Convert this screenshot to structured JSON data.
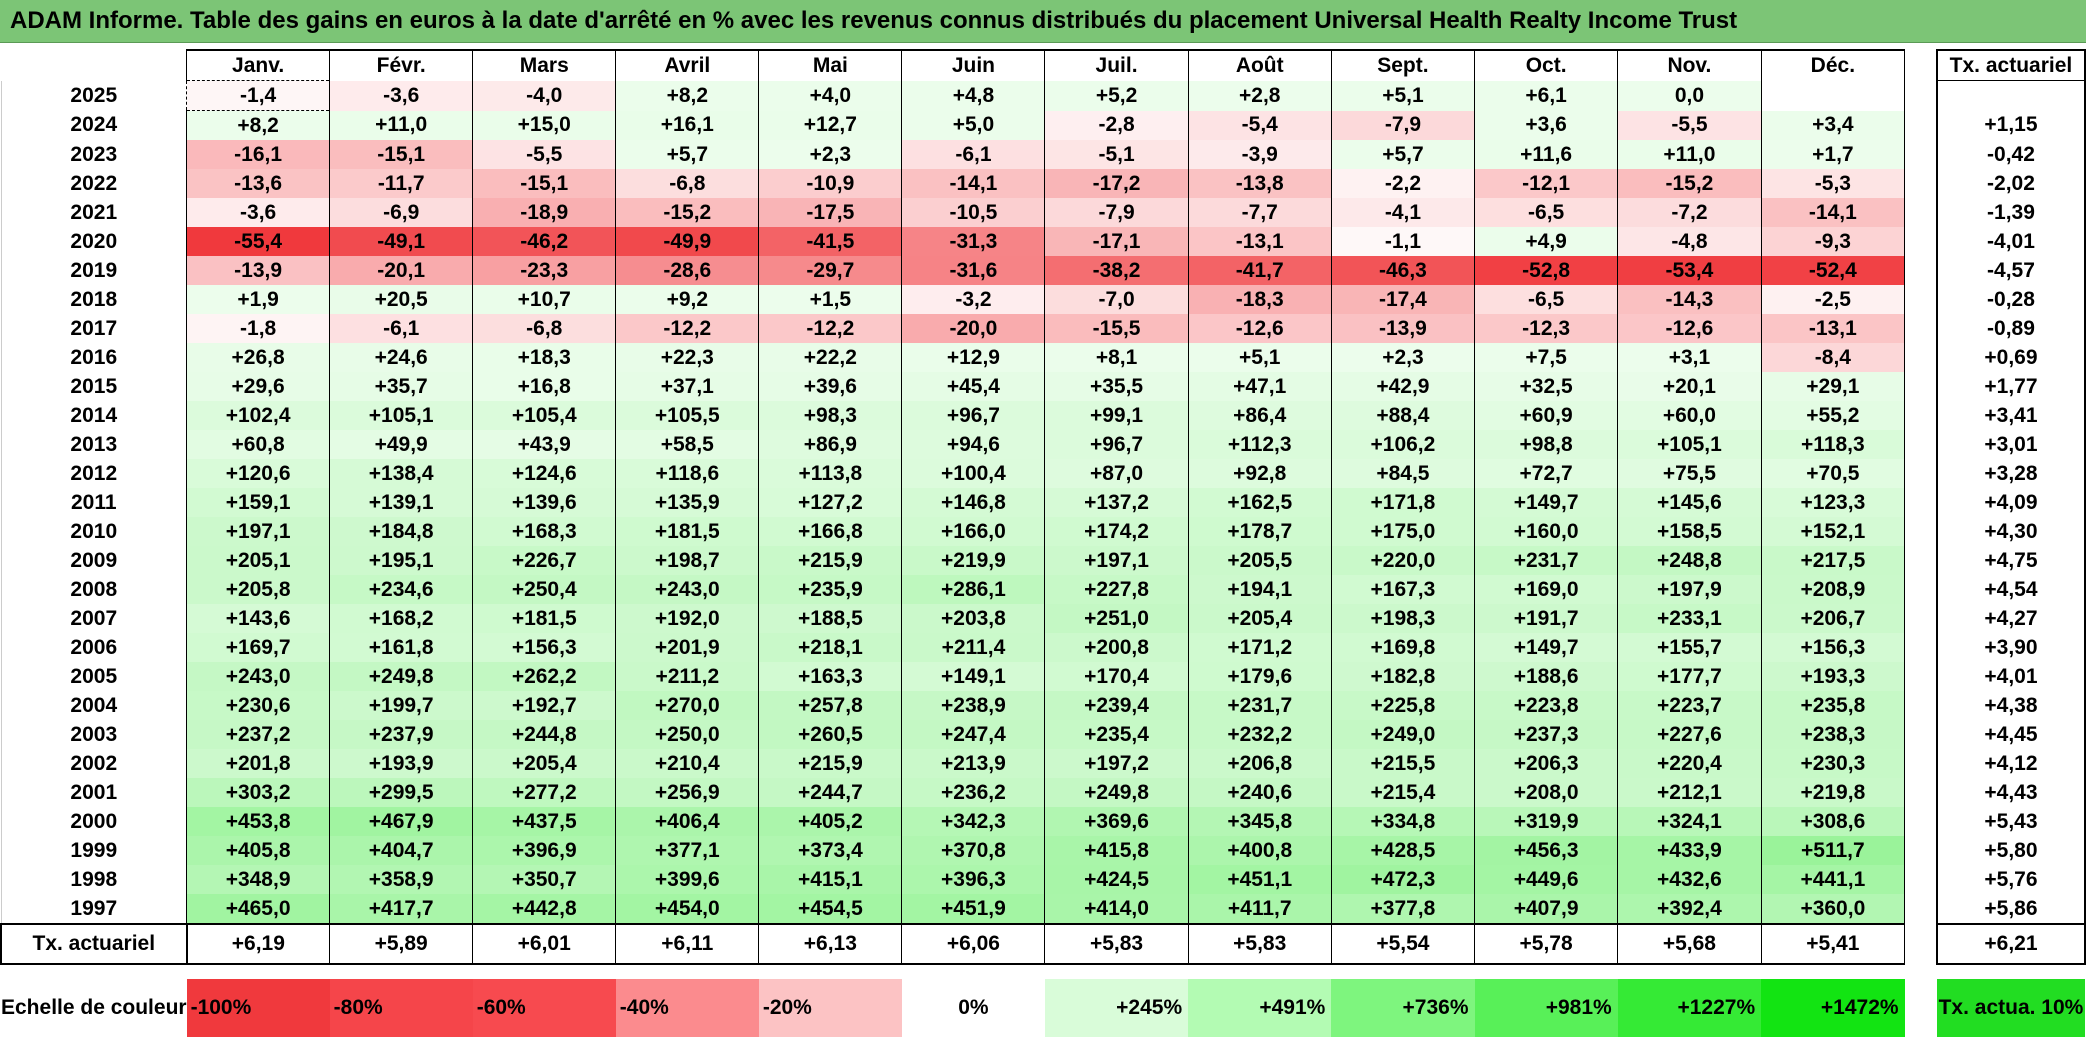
{
  "title": "ADAM Informe. Table des gains en euros à la date d'arrêté en % avec les revenus connus distribués du placement Universal Health Realty Income Trust",
  "chart_data": {
    "type": "heatmap",
    "title": "ADAM Informe. Table des gains en euros à la date d'arrêté en % avec les revenus connus distribués du placement Universal Health Realty Income Trust",
    "columns": [
      "Janv.",
      "Févr.",
      "Mars",
      "Avril",
      "Mai",
      "Juin",
      "Juil.",
      "Août",
      "Sept.",
      "Oct.",
      "Nov.",
      "Déc."
    ],
    "rate_header": "Tx. actuariel",
    "rows": [
      {
        "year": "2025",
        "values": [
          "-1,4",
          "-3,6",
          "-4,0",
          "+8,2",
          "+4,0",
          "+4,8",
          "+5,2",
          "+2,8",
          "+5,1",
          "+6,1",
          "0,0",
          ""
        ],
        "rate": ""
      },
      {
        "year": "2024",
        "values": [
          "+8,2",
          "+11,0",
          "+15,0",
          "+16,1",
          "+12,7",
          "+5,0",
          "-2,8",
          "-5,4",
          "-7,9",
          "+3,6",
          "-5,5",
          "+3,4"
        ],
        "rate": "+1,15"
      },
      {
        "year": "2023",
        "values": [
          "-16,1",
          "-15,1",
          "-5,5",
          "+5,7",
          "+2,3",
          "-6,1",
          "-5,1",
          "-3,9",
          "+5,7",
          "+11,6",
          "+11,0",
          "+1,7"
        ],
        "rate": "-0,42"
      },
      {
        "year": "2022",
        "values": [
          "-13,6",
          "-11,7",
          "-15,1",
          "-6,8",
          "-10,9",
          "-14,1",
          "-17,2",
          "-13,8",
          "-2,2",
          "-12,1",
          "-15,2",
          "-5,3"
        ],
        "rate": "-2,02"
      },
      {
        "year": "2021",
        "values": [
          "-3,6",
          "-6,9",
          "-18,9",
          "-15,2",
          "-17,5",
          "-10,5",
          "-7,9",
          "-7,7",
          "-4,1",
          "-6,5",
          "-7,2",
          "-14,1"
        ],
        "rate": "-1,39"
      },
      {
        "year": "2020",
        "values": [
          "-55,4",
          "-49,1",
          "-46,2",
          "-49,9",
          "-41,5",
          "-31,3",
          "-17,1",
          "-13,1",
          "-1,1",
          "+4,9",
          "-4,8",
          "-9,3"
        ],
        "rate": "-4,01"
      },
      {
        "year": "2019",
        "values": [
          "-13,9",
          "-20,1",
          "-23,3",
          "-28,6",
          "-29,7",
          "-31,6",
          "-38,2",
          "-41,7",
          "-46,3",
          "-52,8",
          "-53,4",
          "-52,4"
        ],
        "rate": "-4,57"
      },
      {
        "year": "2018",
        "values": [
          "+1,9",
          "+20,5",
          "+10,7",
          "+9,2",
          "+1,5",
          "-3,2",
          "-7,0",
          "-18,3",
          "-17,4",
          "-6,5",
          "-14,3",
          "-2,5"
        ],
        "rate": "-0,28"
      },
      {
        "year": "2017",
        "values": [
          "-1,8",
          "-6,1",
          "-6,8",
          "-12,2",
          "-12,2",
          "-20,0",
          "-15,5",
          "-12,6",
          "-13,9",
          "-12,3",
          "-12,6",
          "-13,1"
        ],
        "rate": "-0,89"
      },
      {
        "year": "2016",
        "values": [
          "+26,8",
          "+24,6",
          "+18,3",
          "+22,3",
          "+22,2",
          "+12,9",
          "+8,1",
          "+5,1",
          "+2,3",
          "+7,5",
          "+3,1",
          "-8,4"
        ],
        "rate": "+0,69"
      },
      {
        "year": "2015",
        "values": [
          "+29,6",
          "+35,7",
          "+16,8",
          "+37,1",
          "+39,6",
          "+45,4",
          "+35,5",
          "+47,1",
          "+42,9",
          "+32,5",
          "+20,1",
          "+29,1"
        ],
        "rate": "+1,77"
      },
      {
        "year": "2014",
        "values": [
          "+102,4",
          "+105,1",
          "+105,4",
          "+105,5",
          "+98,3",
          "+96,7",
          "+99,1",
          "+86,4",
          "+88,4",
          "+60,9",
          "+60,0",
          "+55,2"
        ],
        "rate": "+3,41"
      },
      {
        "year": "2013",
        "values": [
          "+60,8",
          "+49,9",
          "+43,9",
          "+58,5",
          "+86,9",
          "+94,6",
          "+96,7",
          "+112,3",
          "+106,2",
          "+98,8",
          "+105,1",
          "+118,3"
        ],
        "rate": "+3,01"
      },
      {
        "year": "2012",
        "values": [
          "+120,6",
          "+138,4",
          "+124,6",
          "+118,6",
          "+113,8",
          "+100,4",
          "+87,0",
          "+92,8",
          "+84,5",
          "+72,7",
          "+75,5",
          "+70,5"
        ],
        "rate": "+3,28"
      },
      {
        "year": "2011",
        "values": [
          "+159,1",
          "+139,1",
          "+139,6",
          "+135,9",
          "+127,2",
          "+146,8",
          "+137,2",
          "+162,5",
          "+171,8",
          "+149,7",
          "+145,6",
          "+123,3"
        ],
        "rate": "+4,09"
      },
      {
        "year": "2010",
        "values": [
          "+197,1",
          "+184,8",
          "+168,3",
          "+181,5",
          "+166,8",
          "+166,0",
          "+174,2",
          "+178,7",
          "+175,0",
          "+160,0",
          "+158,5",
          "+152,1"
        ],
        "rate": "+4,30"
      },
      {
        "year": "2009",
        "values": [
          "+205,1",
          "+195,1",
          "+226,7",
          "+198,7",
          "+215,9",
          "+219,9",
          "+197,1",
          "+205,5",
          "+220,0",
          "+231,7",
          "+248,8",
          "+217,5"
        ],
        "rate": "+4,75"
      },
      {
        "year": "2008",
        "values": [
          "+205,8",
          "+234,6",
          "+250,4",
          "+243,0",
          "+235,9",
          "+286,1",
          "+227,8",
          "+194,1",
          "+167,3",
          "+169,0",
          "+197,9",
          "+208,9"
        ],
        "rate": "+4,54"
      },
      {
        "year": "2007",
        "values": [
          "+143,6",
          "+168,2",
          "+181,5",
          "+192,0",
          "+188,5",
          "+203,8",
          "+251,0",
          "+205,4",
          "+198,3",
          "+191,7",
          "+233,1",
          "+206,7"
        ],
        "rate": "+4,27"
      },
      {
        "year": "2006",
        "values": [
          "+169,7",
          "+161,8",
          "+156,3",
          "+201,9",
          "+218,1",
          "+211,4",
          "+200,8",
          "+171,2",
          "+169,8",
          "+149,7",
          "+155,7",
          "+156,3"
        ],
        "rate": "+3,90"
      },
      {
        "year": "2005",
        "values": [
          "+243,0",
          "+249,8",
          "+262,2",
          "+211,2",
          "+163,3",
          "+149,1",
          "+170,4",
          "+179,6",
          "+182,8",
          "+188,6",
          "+177,7",
          "+193,3"
        ],
        "rate": "+4,01"
      },
      {
        "year": "2004",
        "values": [
          "+230,6",
          "+199,7",
          "+192,7",
          "+270,0",
          "+257,8",
          "+238,9",
          "+239,4",
          "+231,7",
          "+225,8",
          "+223,8",
          "+223,7",
          "+235,8"
        ],
        "rate": "+4,38"
      },
      {
        "year": "2003",
        "values": [
          "+237,2",
          "+237,9",
          "+244,8",
          "+250,0",
          "+260,5",
          "+247,4",
          "+235,4",
          "+232,2",
          "+249,0",
          "+237,3",
          "+227,6",
          "+238,3"
        ],
        "rate": "+4,45"
      },
      {
        "year": "2002",
        "values": [
          "+201,8",
          "+193,9",
          "+205,4",
          "+210,4",
          "+215,9",
          "+213,9",
          "+197,2",
          "+206,8",
          "+215,5",
          "+206,3",
          "+220,4",
          "+230,3"
        ],
        "rate": "+4,12"
      },
      {
        "year": "2001",
        "values": [
          "+303,2",
          "+299,5",
          "+277,2",
          "+256,9",
          "+244,7",
          "+236,2",
          "+249,8",
          "+240,6",
          "+215,4",
          "+208,0",
          "+212,1",
          "+219,8"
        ],
        "rate": "+4,43"
      },
      {
        "year": "2000",
        "values": [
          "+453,8",
          "+467,9",
          "+437,5",
          "+406,4",
          "+405,2",
          "+342,3",
          "+369,6",
          "+345,8",
          "+334,8",
          "+319,9",
          "+324,1",
          "+308,6"
        ],
        "rate": "+5,43"
      },
      {
        "year": "1999",
        "values": [
          "+405,8",
          "+404,7",
          "+396,9",
          "+377,1",
          "+373,4",
          "+370,8",
          "+415,8",
          "+400,8",
          "+428,5",
          "+456,3",
          "+433,9",
          "+511,7"
        ],
        "rate": "+5,80"
      },
      {
        "year": "1998",
        "values": [
          "+348,9",
          "+358,9",
          "+350,7",
          "+399,6",
          "+415,1",
          "+396,3",
          "+424,5",
          "+451,1",
          "+472,3",
          "+449,6",
          "+432,6",
          "+441,1"
        ],
        "rate": "+5,76"
      },
      {
        "year": "1997",
        "values": [
          "+465,0",
          "+417,7",
          "+442,8",
          "+454,0",
          "+454,5",
          "+451,9",
          "+414,0",
          "+411,7",
          "+377,8",
          "+407,9",
          "+392,4",
          "+360,0"
        ],
        "rate": "+5,86"
      }
    ],
    "totals": {
      "label": "Tx. actuariel",
      "values": [
        "+6,19",
        "+5,89",
        "+6,01",
        "+6,11",
        "+6,13",
        "+6,06",
        "+5,83",
        "+5,83",
        "+5,54",
        "+5,78",
        "+5,68",
        "+5,41"
      ],
      "overall": "+6,21"
    },
    "color_scale": {
      "label": "Echelle de couleur",
      "steps": [
        {
          "label": "-100%",
          "color": "#f0393d"
        },
        {
          "label": "-80%",
          "color": "#f5454a"
        },
        {
          "label": "-60%",
          "color": "#f74a4f"
        },
        {
          "label": "-40%",
          "color": "#fb8b8e"
        },
        {
          "label": "-20%",
          "color": "#fcc3c4"
        },
        {
          "label": "0%",
          "color": "#ffffff"
        },
        {
          "label": "+245%",
          "color": "#d9fcd9"
        },
        {
          "label": "+491%",
          "color": "#b3fbb3"
        },
        {
          "label": "+736%",
          "color": "#7ef57e"
        },
        {
          "label": "+981%",
          "color": "#58f058"
        },
        {
          "label": "+1227%",
          "color": "#35ea35"
        },
        {
          "label": "+1472%",
          "color": "#12e412"
        }
      ],
      "last_label": "Tx. actua. 10%",
      "last_color": "#22dd22"
    }
  }
}
